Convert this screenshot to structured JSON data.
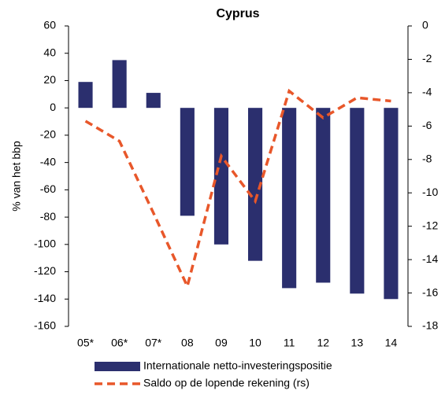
{
  "chart_data": {
    "type": "bar-line",
    "title": "Cyprus",
    "y_label": "% van het bbp",
    "categories": [
      "05*",
      "06*",
      "07*",
      "08",
      "09",
      "10",
      "11",
      "12",
      "13",
      "14"
    ],
    "series": [
      {
        "name": "Internationale netto-investeringspositie",
        "type": "bar",
        "color": "#2b2f6e",
        "values": [
          19,
          35,
          11,
          -79,
          -100,
          -112,
          -132,
          -128,
          -136,
          -140
        ]
      },
      {
        "name": "Saldo op de lopende rekening (rs)",
        "type": "line",
        "axis": "y2",
        "color": "#e8572a",
        "dashed": true,
        "values": [
          -5.7,
          -6.9,
          -11.2,
          -15.6,
          -7.8,
          -10.5,
          -3.9,
          -5.5,
          -4.3,
          -4.5
        ]
      }
    ],
    "ylim": [
      -160,
      60
    ],
    "yticks": [
      -160,
      -140,
      -120,
      -100,
      -80,
      -60,
      -40,
      -20,
      0,
      20,
      40,
      60
    ],
    "y2lim": [
      -18,
      0
    ],
    "y2ticks": [
      -18,
      -16,
      -14,
      -12,
      -10,
      -8,
      -6,
      -4,
      -2,
      0
    ]
  }
}
